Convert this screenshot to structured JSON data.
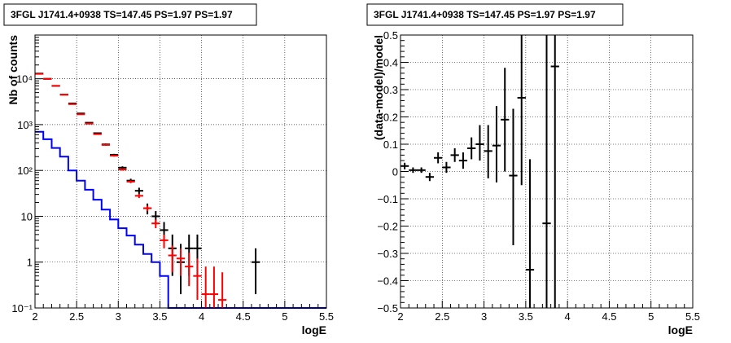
{
  "chart_data": [
    {
      "type": "line",
      "title": "3FGL J1741.4+0938 TS=147.45 PS=1.97 PS=1.97",
      "xlabel": "logE",
      "ylabel": "Nb of counts",
      "xlim": [
        2,
        5.5
      ],
      "ylim": [
        0.1,
        90000
      ],
      "yscale": "log",
      "grid": true,
      "x_ticks": [
        2,
        2.5,
        3,
        3.5,
        4,
        4.5,
        5,
        5.5
      ],
      "x_tick_labels": [
        "2",
        "2.5",
        "3",
        "3.5",
        "4",
        "4.5",
        "5",
        "5.5"
      ],
      "y_ticks": [
        0.1,
        1,
        10,
        100,
        1000,
        10000
      ],
      "y_tick_labels": [
        "10⁻¹",
        "1",
        "10",
        "10²",
        "10³",
        "10⁴"
      ],
      "series": [
        {
          "color": "#0000ff",
          "style": "step",
          "bin_edges": [
            2.0,
            2.1,
            2.2,
            2.3,
            2.4,
            2.5,
            2.6,
            2.7,
            2.8,
            2.9,
            3.0,
            3.1,
            3.2,
            3.3,
            3.4,
            3.5,
            3.6,
            3.7,
            3.8,
            3.9,
            4.0,
            4.1,
            4.2,
            4.3,
            4.4,
            4.5,
            4.6,
            4.7,
            4.8,
            4.9,
            5.0,
            5.1,
            5.2,
            5.3,
            5.4,
            5.5
          ],
          "values": [
            700,
            480,
            310,
            200,
            100,
            60,
            38,
            23,
            14,
            8.5,
            5.5,
            3.8,
            2.4,
            1.5,
            1.0,
            0.5,
            0.1,
            0.1,
            0.1,
            0.1,
            0.1,
            0.1,
            0.1,
            0.1,
            0.1,
            0.1,
            0.1,
            0.1,
            0.1,
            0.1,
            0.1,
            0.1,
            0.1,
            0.1,
            0.1
          ]
        },
        {
          "color": "#000000",
          "style": "errorbar",
          "x": [
            2.05,
            2.15,
            2.25,
            2.35,
            2.45,
            2.55,
            2.65,
            2.75,
            2.85,
            2.95,
            3.05,
            3.15,
            3.25,
            3.35,
            3.45,
            3.55,
            3.65,
            3.75,
            3.85,
            3.95,
            4.65
          ],
          "y": [
            13000,
            10000,
            7000,
            4500,
            2900,
            1750,
            1100,
            650,
            370,
            220,
            115,
            60,
            36,
            15,
            10,
            5,
            2,
            1,
            2,
            2,
            1
          ],
          "y_low": [
            12800,
            9800,
            6850,
            4400,
            2840,
            1700,
            1070,
            630,
            355,
            210,
            107,
            54,
            30,
            11,
            7,
            3,
            0.5,
            0.2,
            0.5,
            0.5,
            0.2
          ],
          "y_high": [
            13200,
            10200,
            7150,
            4600,
            2960,
            1800,
            1130,
            670,
            385,
            230,
            123,
            66,
            42,
            19,
            13,
            7.5,
            4,
            2.5,
            4,
            4,
            2
          ]
        },
        {
          "color": "#ff0000",
          "style": "errorbar",
          "x": [
            2.05,
            2.15,
            2.25,
            2.35,
            2.45,
            2.55,
            2.65,
            2.75,
            2.85,
            2.95,
            3.05,
            3.15,
            3.25,
            3.35,
            3.45,
            3.55,
            3.65,
            3.75,
            3.85,
            3.95,
            4.05,
            4.15,
            4.25
          ],
          "y": [
            12800,
            9900,
            7000,
            4500,
            2800,
            1680,
            1050,
            620,
            360,
            210,
            105,
            57,
            28,
            15,
            7,
            3,
            1.4,
            1.2,
            0.8,
            0.5,
            0.2,
            0.2,
            0.15
          ],
          "y_low": [
            12600,
            9700,
            6850,
            4400,
            2740,
            1640,
            1020,
            600,
            345,
            200,
            99,
            53,
            25,
            13,
            5.5,
            2,
            0.6,
            0.5,
            0.3,
            0.15,
            0.1,
            0.1,
            0.1
          ],
          "y_high": [
            13000,
            10100,
            7150,
            4600,
            2860,
            1720,
            1080,
            640,
            375,
            220,
            111,
            61,
            31,
            17,
            8.5,
            4,
            2.3,
            2,
            1.6,
            1.2,
            0.8,
            0.8,
            0.6
          ]
        }
      ]
    },
    {
      "type": "scatter",
      "title": "3FGL J1741.4+0938 TS=147.45 PS=1.97 PS=1.97",
      "xlabel": "logE",
      "ylabel": "(data-model)/model",
      "xlim": [
        2,
        5.5
      ],
      "ylim": [
        -0.5,
        0.5
      ],
      "grid": true,
      "x_ticks": [
        2,
        2.5,
        3,
        3.5,
        4,
        4.5,
        5,
        5.5
      ],
      "x_tick_labels": [
        "2",
        "2.5",
        "3",
        "3.5",
        "4",
        "4.5",
        "5",
        "5.5"
      ],
      "y_ticks": [
        -0.5,
        -0.4,
        -0.3,
        -0.2,
        -0.1,
        0,
        0.1,
        0.2,
        0.3,
        0.4,
        0.5
      ],
      "y_tick_labels": [
        "−0.5",
        "−0.4",
        "−0.3",
        "−0.2",
        "−0.1",
        "0",
        "0.1",
        "0.2",
        "0.3",
        "0.4",
        "0.5"
      ],
      "series": [
        {
          "color": "#000000",
          "style": "errorbar",
          "x": [
            2.05,
            2.15,
            2.25,
            2.35,
            2.45,
            2.55,
            2.65,
            2.75,
            2.85,
            2.95,
            3.05,
            3.15,
            3.25,
            3.35,
            3.45,
            3.55,
            3.75,
            3.85
          ],
          "y": [
            0.02,
            0.005,
            0.005,
            -0.02,
            0.05,
            0.015,
            0.06,
            0.04,
            0.085,
            0.1,
            0.075,
            0.095,
            0.19,
            -0.015,
            0.27,
            -0.36,
            -0.19,
            0.385
          ],
          "y_low": [
            0.008,
            -0.005,
            -0.005,
            -0.035,
            0.03,
            -0.005,
            0.035,
            0.01,
            0.045,
            0.04,
            -0.025,
            -0.04,
            0.0,
            -0.27,
            -0.05,
            -0.5,
            -0.5,
            -0.5
          ],
          "y_high": [
            0.032,
            0.015,
            0.015,
            -0.005,
            0.07,
            0.035,
            0.085,
            0.07,
            0.125,
            0.17,
            0.17,
            0.24,
            0.38,
            0.23,
            0.5,
            0.045,
            0.5,
            0.5
          ]
        }
      ]
    }
  ]
}
